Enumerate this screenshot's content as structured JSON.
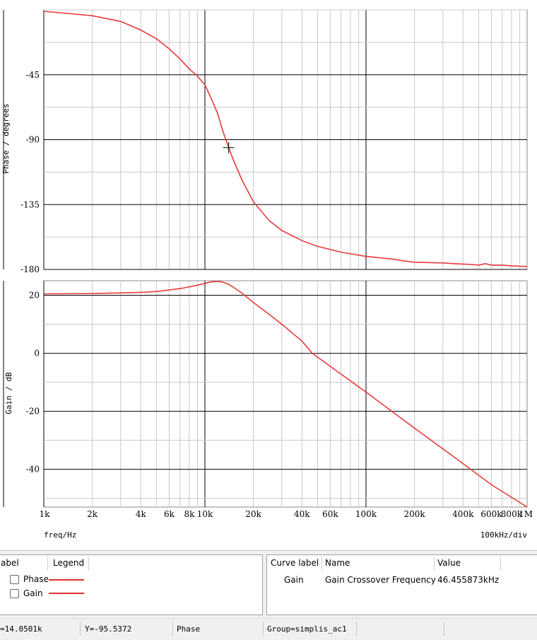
{
  "chart_data": [
    {
      "type": "line",
      "ylabel": "Phase / degrees",
      "xscale": "log",
      "xlim": [
        1000,
        1000000
      ],
      "ylim": [
        -180,
        0
      ],
      "yticks": [
        -45,
        -90,
        -135,
        -180
      ],
      "grid": true,
      "series": [
        {
          "name": "Phase",
          "color": "#e83a3a",
          "x": [
            1000,
            2000,
            3000,
            4000,
            5000,
            6000,
            7000,
            8000,
            9000,
            10000,
            11000,
            12000,
            13000,
            14050,
            15000,
            17000,
            20000,
            25000,
            30000,
            40000,
            50000,
            70000,
            100000,
            150000,
            170000,
            200000,
            300000,
            350000,
            450000,
            500000,
            550000,
            600000,
            700000,
            800000,
            1000000
          ],
          "y": [
            -1,
            -4,
            -8,
            -14,
            -20,
            -27,
            -34,
            -41,
            -46,
            -52,
            -62,
            -72,
            -85,
            -95.5,
            -104,
            -118,
            -133,
            -146,
            -153,
            -160,
            -164,
            -168,
            -171,
            -173,
            -174,
            -175,
            -175.5,
            -176,
            -176.5,
            -177,
            -176,
            -177,
            -177,
            -177.5,
            -178
          ]
        }
      ]
    },
    {
      "type": "line",
      "xlabel": "freq/Hz",
      "ylabel": "Gain / dB",
      "xscale": "log",
      "xlim": [
        1000,
        1000000
      ],
      "ylim": [
        -53,
        25
      ],
      "yticks": [
        20,
        0,
        -20,
        -40
      ],
      "xtick_labels": [
        "1k",
        "2k",
        "4k",
        "6k",
        "8k",
        "10k",
        "20k",
        "40k",
        "60k",
        "100k",
        "200k",
        "400k",
        "600k",
        "800k",
        "1M"
      ],
      "grid": true,
      "series": [
        {
          "name": "Gain",
          "color": "#e83a3a",
          "x": [
            1000,
            2000,
            3000,
            4000,
            5000,
            6000,
            7000,
            8000,
            9000,
            10000,
            11000,
            12000,
            13000,
            14000,
            15000,
            17000,
            20000,
            25000,
            30000,
            40000,
            46456,
            60000,
            100000,
            200000,
            400000,
            600000,
            1000000
          ],
          "y": [
            20.5,
            20.6,
            20.8,
            21.0,
            21.3,
            21.8,
            22.3,
            22.9,
            23.5,
            24.1,
            24.6,
            24.8,
            24.5,
            23.8,
            22.8,
            20.7,
            17.5,
            13.5,
            10.0,
            4.2,
            0.0,
            -4.5,
            -13.4,
            -25.8,
            -38.0,
            -45.3,
            -53.0
          ]
        }
      ]
    }
  ],
  "axis_footer": {
    "xlabel": "freq/Hz",
    "division": "100kHz/div"
  },
  "cursor": {
    "x": 14050.1,
    "y": -95.5372
  },
  "legend_panel": {
    "col_curve_label": "abel",
    "col_legend": "Legend",
    "items": [
      {
        "label": "Phase",
        "checked": false
      },
      {
        "label": "Gain",
        "checked": false
      }
    ]
  },
  "measure_panel": {
    "col_curve_label": "Curve label",
    "col_name": "Name",
    "col_value": "Value",
    "rows": [
      {
        "curve": "Gain",
        "name": "Gain Crossover Frequency",
        "value": "46.455873kHz"
      }
    ]
  },
  "status_bar": {
    "x_readout": "=14.0501k",
    "y_readout": "Y=-95.5372",
    "curve": "Phase",
    "group": "Group=simplis_ac1"
  }
}
